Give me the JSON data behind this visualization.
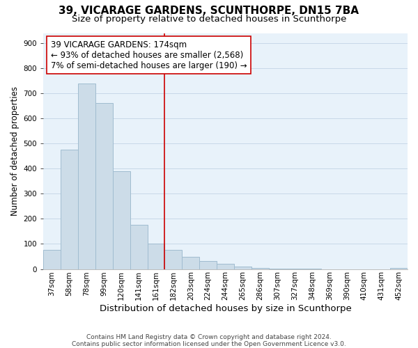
{
  "title": "39, VICARAGE GARDENS, SCUNTHORPE, DN15 7BA",
  "subtitle": "Size of property relative to detached houses in Scunthorpe",
  "xlabel": "Distribution of detached houses by size in Scunthorpe",
  "ylabel": "Number of detached properties",
  "bar_labels": [
    "37sqm",
    "58sqm",
    "78sqm",
    "99sqm",
    "120sqm",
    "141sqm",
    "161sqm",
    "182sqm",
    "203sqm",
    "224sqm",
    "244sqm",
    "265sqm",
    "286sqm",
    "307sqm",
    "327sqm",
    "348sqm",
    "369sqm",
    "390sqm",
    "410sqm",
    "431sqm",
    "452sqm"
  ],
  "bar_values": [
    75,
    475,
    740,
    660,
    390,
    175,
    100,
    75,
    48,
    33,
    20,
    10,
    5,
    2,
    1,
    1,
    0,
    0,
    0,
    0,
    5
  ],
  "bar_color": "#ccdce8",
  "bar_edge_color": "#a0bcd0",
  "vline_color": "#cc0000",
  "ylim": [
    0,
    940
  ],
  "yticks": [
    0,
    100,
    200,
    300,
    400,
    500,
    600,
    700,
    800,
    900
  ],
  "annotation_text": "39 VICARAGE GARDENS: 174sqm\n← 93% of detached houses are smaller (2,568)\n7% of semi-detached houses are larger (190) →",
  "annotation_box_color": "#ffffff",
  "annotation_box_edge": "#cc0000",
  "footer_line1": "Contains HM Land Registry data © Crown copyright and database right 2024.",
  "footer_line2": "Contains public sector information licensed under the Open Government Licence v3.0.",
  "title_fontsize": 11,
  "subtitle_fontsize": 9.5,
  "xlabel_fontsize": 9.5,
  "ylabel_fontsize": 8.5,
  "tick_fontsize": 7.5,
  "annotation_fontsize": 8.5,
  "footer_fontsize": 6.5,
  "grid_color": "#c8d8e8",
  "background_color": "#e8f2fa"
}
